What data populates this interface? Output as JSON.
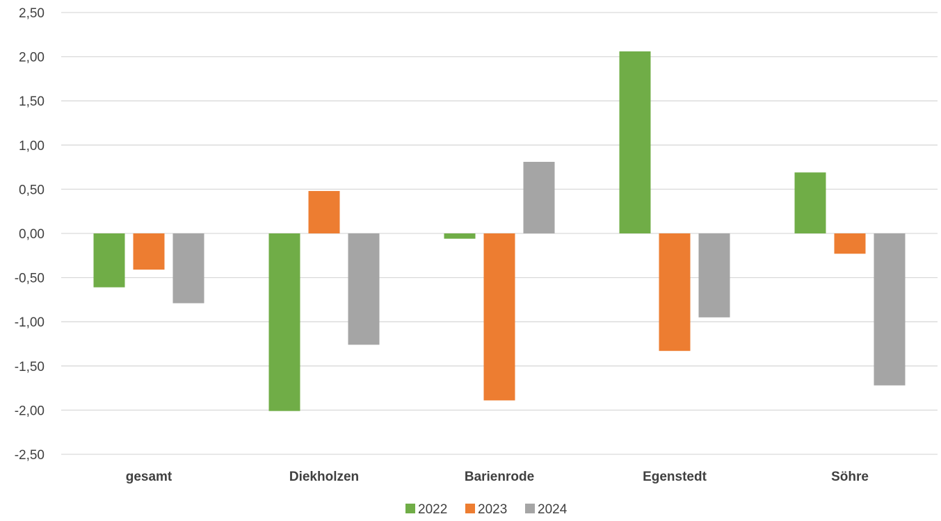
{
  "chart_data": {
    "type": "bar",
    "title": "",
    "xlabel": "",
    "ylabel": "",
    "categories": [
      "gesamt",
      "Diekholzen",
      "Barienrode",
      "Egenstedt",
      "Söhre"
    ],
    "series": [
      {
        "name": "2022",
        "color": "#70AD47",
        "values": [
          -0.61,
          -2.01,
          -0.06,
          2.06,
          0.69
        ]
      },
      {
        "name": "2023",
        "color": "#ED7D31",
        "values": [
          -0.41,
          0.48,
          -1.89,
          -1.33,
          -0.23
        ]
      },
      {
        "name": "2024",
        "color": "#A5A5A5",
        "values": [
          -0.79,
          -1.26,
          0.81,
          -0.95,
          -1.72
        ]
      }
    ],
    "ylim": [
      -2.5,
      2.5
    ],
    "y_ticks": [
      "2,50",
      "2,00",
      "1,50",
      "1,00",
      "0,50",
      "0,00",
      "-0,50",
      "-1,00",
      "-1,50",
      "-2,00",
      "-2,50"
    ],
    "grid": true,
    "legend_position": "bottom"
  }
}
